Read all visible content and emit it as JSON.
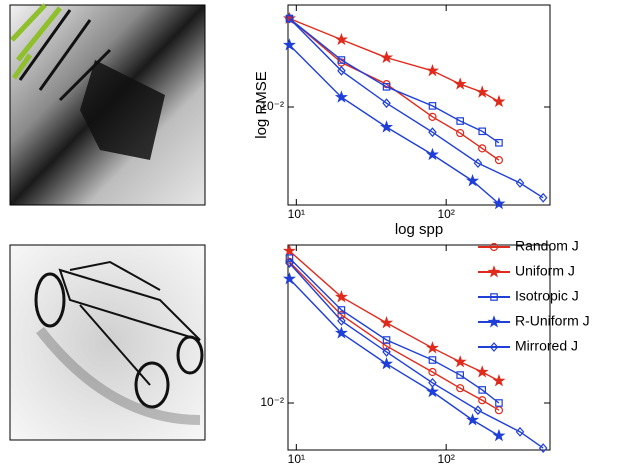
{
  "chart_data": [
    {
      "type": "line",
      "xlabel": "log spp",
      "ylabel": "log RMSE",
      "log_x": true,
      "log_y": true,
      "xlim": [
        8.8,
        493
      ],
      "ylim": [
        0.00176,
        0.061
      ],
      "xticks": [
        {
          "value": 10,
          "label": "10¹"
        },
        {
          "value": 100,
          "label": "10²"
        }
      ],
      "yticks": [
        {
          "value": 0.01,
          "label": "10⁻²"
        }
      ],
      "series": [
        {
          "name": "Random J",
          "color": "#e02a1c",
          "marker": "circle",
          "x": [
            9,
            20,
            40,
            81,
            124,
            174,
            225
          ],
          "values": [
            0.048,
            0.022,
            0.015,
            0.0084,
            0.0063,
            0.0048,
            0.0039
          ]
        },
        {
          "name": "Uniform J",
          "color": "#e02a1c",
          "marker": "star",
          "x": [
            9,
            20,
            40,
            81,
            124,
            174,
            225
          ],
          "values": [
            0.048,
            0.033,
            0.024,
            0.019,
            0.015,
            0.013,
            0.011
          ]
        },
        {
          "name": "Isotropic J",
          "color": "#1f3fd8",
          "marker": "square",
          "x": [
            9,
            20,
            40,
            81,
            124,
            174,
            225
          ],
          "values": [
            0.048,
            0.023,
            0.0143,
            0.0102,
            0.0078,
            0.0065,
            0.0053
          ]
        },
        {
          "name": "R-Uniform J",
          "color": "#1f3fd8",
          "marker": "star",
          "x": [
            9,
            20,
            40,
            81,
            150,
            225
          ],
          "values": [
            0.03,
            0.0119,
            0.007,
            0.0043,
            0.0027,
            0.0018
          ]
        },
        {
          "name": "Mirrored J",
          "color": "#1f3fd8",
          "marker": "diamond",
          "x": [
            9,
            20,
            40,
            81,
            163,
            311,
            444
          ],
          "values": [
            0.048,
            0.019,
            0.0107,
            0.0064,
            0.0037,
            0.0026,
            0.002
          ]
        }
      ]
    },
    {
      "type": "line",
      "log_x": true,
      "log_y": true,
      "legend": "upper right",
      "xlim": [
        8.8,
        493
      ],
      "ylim": [
        0.00435,
        0.164
      ],
      "xticks": [
        {
          "value": 10,
          "label": "10¹"
        },
        {
          "value": 100,
          "label": "10²"
        }
      ],
      "yticks": [
        {
          "value": 0.01,
          "label": "10⁻²"
        }
      ],
      "series": [
        {
          "name": "Random J",
          "color": "#e02a1c",
          "marker": "circle",
          "x": [
            9,
            20,
            40,
            81,
            124,
            174,
            225
          ],
          "values": [
            0.1216,
            0.0475,
            0.0274,
            0.0173,
            0.013,
            0.0105,
            0.0088
          ]
        },
        {
          "name": "Uniform J",
          "color": "#e02a1c",
          "marker": "star",
          "x": [
            9,
            20,
            40,
            81,
            124,
            174,
            225
          ],
          "values": [
            0.1476,
            0.0654,
            0.0413,
            0.0265,
            0.0207,
            0.0173,
            0.0148
          ]
        },
        {
          "name": "Isotropic J",
          "color": "#1f3fd8",
          "marker": "square",
          "x": [
            9,
            20,
            40,
            81,
            124,
            174,
            225
          ],
          "values": [
            0.13,
            0.0519,
            0.0305,
            0.0214,
            0.0164,
            0.0126,
            0.01
          ]
        },
        {
          "name": "R-Uniform J",
          "color": "#1f3fd8",
          "marker": "star",
          "x": [
            9,
            20,
            40,
            81,
            150,
            225
          ],
          "values": [
            0.09,
            0.0345,
            0.02,
            0.0122,
            0.0074,
            0.0056
          ]
        },
        {
          "name": "Mirrored J",
          "color": "#1f3fd8",
          "marker": "diamond",
          "x": [
            9,
            20,
            40,
            81,
            163,
            311,
            444
          ],
          "values": [
            0.119,
            0.0428,
            0.0247,
            0.0143,
            0.0088,
            0.006,
            0.0045
          ]
        }
      ]
    }
  ]
}
